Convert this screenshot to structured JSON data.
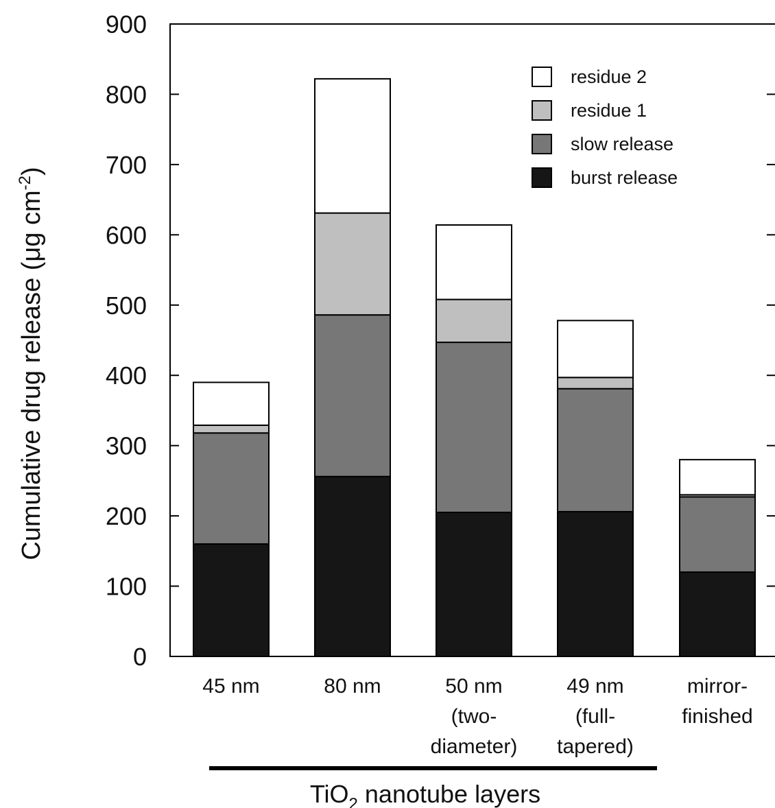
{
  "chart_data": {
    "type": "bar",
    "stacked": true,
    "ylabel": "Cumulative drug release (μg cm-2)",
    "ylabel_main": "Cumulative drug release (μg cm",
    "ylabel_sup": "-2",
    "ylabel_end": ")",
    "ylim": [
      0,
      900
    ],
    "yticks": [
      0,
      100,
      200,
      300,
      400,
      500,
      600,
      700,
      800,
      900
    ],
    "categories": [
      [
        "45 nm"
      ],
      [
        "80 nm"
      ],
      [
        "50 nm",
        "(two-",
        "diameter)"
      ],
      [
        "49 nm",
        "(full-",
        "tapered)"
      ],
      [
        "mirror-",
        "finished"
      ]
    ],
    "group_label": "TiO2 nanotube layers",
    "group_label_parts": [
      "TiO",
      "2",
      " nanotube layers"
    ],
    "legend_position": "top-right",
    "series": [
      {
        "name": "burst release",
        "color": "#161616",
        "values": [
          160,
          256,
          205,
          206,
          120
        ]
      },
      {
        "name": "slow release",
        "color": "#777777",
        "values": [
          158,
          230,
          242,
          175,
          107
        ]
      },
      {
        "name": "residue 1",
        "color": "#bfbfbf",
        "values": [
          11,
          145,
          61,
          16,
          3
        ]
      },
      {
        "name": "residue 2",
        "color": "#ffffff",
        "values": [
          61,
          191,
          106,
          81,
          50
        ]
      }
    ]
  }
}
